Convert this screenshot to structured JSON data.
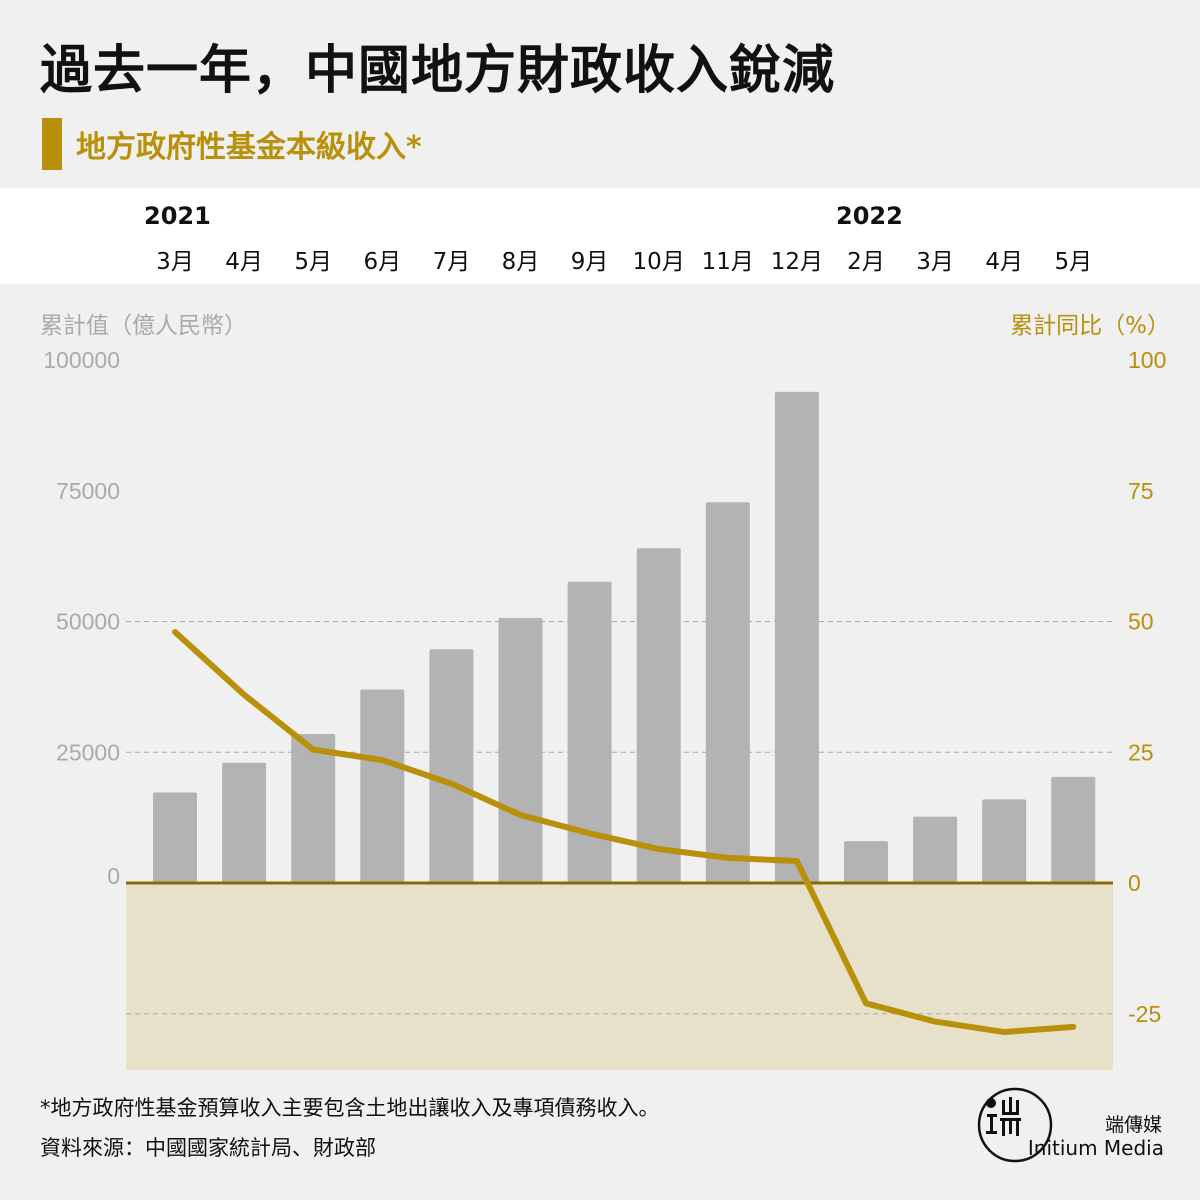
{
  "title": "過去一年，中國地方財政收入銳減",
  "subtitle": "地方政府性基金本級收入*",
  "years": [
    "2021",
    "2022"
  ],
  "months": [
    "3月",
    "4月",
    "5月",
    "6月",
    "7月",
    "8月",
    "9月",
    "10月",
    "11月",
    "12月",
    "2月",
    "3月",
    "4月",
    "5月"
  ],
  "left_axis_title": "累計值（億人民幣）",
  "right_axis_title": "累計同比（%）",
  "footnote": "*地方政府性基金預算收入主要包含土地出讓收入及專項債務收入。",
  "source": "資料來源：中國國家統計局、財政部",
  "brand": {
    "cn": "端傳媒",
    "en": "Initium Media"
  },
  "colors": {
    "bar": "#b3b3b3",
    "line": "#b8900a",
    "negative_fill": "#e8e1c9",
    "background": "#f0f0f0"
  },
  "chart_data": {
    "type": "bar",
    "categories": [
      "3月",
      "4月",
      "5月",
      "6月",
      "7月",
      "8月",
      "9月",
      "10月",
      "11月",
      "12月",
      "2月",
      "3月",
      "4月",
      "5月"
    ],
    "series": [
      {
        "values": [
          17300,
          23000,
          28500,
          37000,
          44700,
          50700,
          57600,
          64000,
          72800,
          93900,
          8000,
          12700,
          16000,
          20300
        ],
        "axis": "left",
        "type": "bar"
      },
      {
        "values": [
          48,
          36,
          25.5,
          23.5,
          19,
          13,
          9.5,
          6.5,
          4.8,
          4.2,
          -23,
          -26.5,
          -28.5,
          -27.5
        ],
        "axis": "right",
        "type": "line"
      }
    ],
    "y_left": {
      "ticks": [
        "100000",
        "75000",
        "50000",
        "25000",
        "0"
      ],
      "range": [
        0,
        100000
      ]
    },
    "y_right": {
      "ticks": [
        "100",
        "75",
        "50",
        "25",
        "0",
        "-25"
      ],
      "range": [
        -30,
        100
      ]
    },
    "grid": "dashed at 50000/25000 and -25"
  }
}
